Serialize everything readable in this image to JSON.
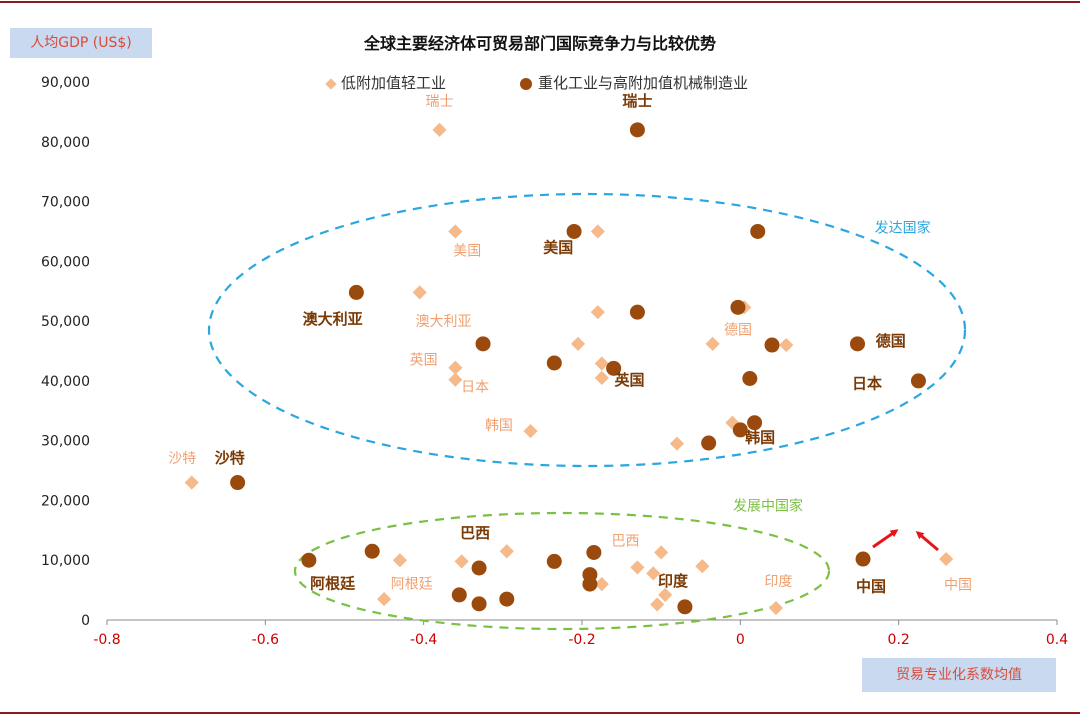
{
  "chart_data": {
    "type": "scatter",
    "title": "全球主要经济体可贸易部门国际竞争力与比较优势",
    "xlabel": "贸易专业化系数均值",
    "ylabel": "人均GDP (US$)",
    "xlim": [
      -0.8,
      0.4
    ],
    "ylim": [
      0,
      90000
    ],
    "x_ticks": [
      "-0.8",
      "-0.6",
      "-0.4",
      "-0.2",
      "0",
      "0.2",
      "0.4"
    ],
    "y_ticks": [
      "0",
      "10,000",
      "20,000",
      "30,000",
      "40,000",
      "50,000",
      "60,000",
      "70,000",
      "80,000",
      "90,000"
    ],
    "grid": false,
    "legend_position": "top-center",
    "colors": {
      "light": "#f5b98a",
      "heavy": "#9a4a0c",
      "developed": "#2aa6e0",
      "developing": "#7bc043",
      "axis_num_x": "#cc0000",
      "label_light": "#f0a070",
      "label_heavy": "#7a3a06"
    },
    "series": [
      {
        "name": "低附加值轻工业",
        "marker": "diamond",
        "points": [
          {
            "x": -0.38,
            "y": 82000
          },
          {
            "x": -0.36,
            "y": 65000
          },
          {
            "x": -0.18,
            "y": 65000
          },
          {
            "x": -0.405,
            "y": 54800
          },
          {
            "x": -0.18,
            "y": 51500
          },
          {
            "x": -0.205,
            "y": 46200
          },
          {
            "x": -0.36,
            "y": 42200
          },
          {
            "x": -0.36,
            "y": 40200
          },
          {
            "x": -0.175,
            "y": 42900
          },
          {
            "x": -0.175,
            "y": 40500
          },
          {
            "x": 0.005,
            "y": 52300
          },
          {
            "x": -0.035,
            "y": 46200
          },
          {
            "x": 0.058,
            "y": 46000
          },
          {
            "x": -0.265,
            "y": 31600
          },
          {
            "x": -0.01,
            "y": 33000
          },
          {
            "x": -0.08,
            "y": 29500
          },
          {
            "x": -0.693,
            "y": 23000
          },
          {
            "x": -0.43,
            "y": 10000
          },
          {
            "x": -0.352,
            "y": 9800
          },
          {
            "x": -0.295,
            "y": 11500
          },
          {
            "x": -0.45,
            "y": 3500
          },
          {
            "x": -0.175,
            "y": 6000
          },
          {
            "x": -0.13,
            "y": 8800
          },
          {
            "x": -0.11,
            "y": 7800
          },
          {
            "x": -0.1,
            "y": 11300
          },
          {
            "x": -0.048,
            "y": 9000
          },
          {
            "x": -0.095,
            "y": 4200
          },
          {
            "x": -0.105,
            "y": 2600
          },
          {
            "x": 0.045,
            "y": 2000
          },
          {
            "x": 0.26,
            "y": 10200
          }
        ]
      },
      {
        "name": "重化工业与高附加值机械制造业",
        "marker": "circle",
        "points": [
          {
            "x": -0.13,
            "y": 82000
          },
          {
            "x": -0.21,
            "y": 65000
          },
          {
            "x": 0.022,
            "y": 65000
          },
          {
            "x": -0.485,
            "y": 54800
          },
          {
            "x": -0.13,
            "y": 51500
          },
          {
            "x": -0.003,
            "y": 52300
          },
          {
            "x": -0.325,
            "y": 46200
          },
          {
            "x": -0.235,
            "y": 43000
          },
          {
            "x": -0.16,
            "y": 42100
          },
          {
            "x": 0.04,
            "y": 46000
          },
          {
            "x": 0.148,
            "y": 46200
          },
          {
            "x": 0.012,
            "y": 40400
          },
          {
            "x": 0.225,
            "y": 40000
          },
          {
            "x": -0.04,
            "y": 29600
          },
          {
            "x": 0,
            "y": 31800
          },
          {
            "x": 0.018,
            "y": 33000
          },
          {
            "x": -0.635,
            "y": 23000
          },
          {
            "x": -0.545,
            "y": 10000
          },
          {
            "x": -0.465,
            "y": 11500
          },
          {
            "x": -0.33,
            "y": 8700
          },
          {
            "x": -0.355,
            "y": 4200
          },
          {
            "x": -0.33,
            "y": 2700
          },
          {
            "x": -0.295,
            "y": 3500
          },
          {
            "x": -0.235,
            "y": 9800
          },
          {
            "x": -0.185,
            "y": 11300
          },
          {
            "x": -0.19,
            "y": 7600
          },
          {
            "x": -0.19,
            "y": 6000
          },
          {
            "x": -0.07,
            "y": 2200
          },
          {
            "x": 0.155,
            "y": 10200
          }
        ]
      }
    ],
    "point_labels": [
      {
        "text": "瑞士",
        "x": -0.38,
        "y": 86000,
        "style": "light"
      },
      {
        "text": "瑞士",
        "x": -0.13,
        "y": 86000,
        "style": "heavy"
      },
      {
        "text": "美国",
        "x": -0.345,
        "y": 61000,
        "style": "light"
      },
      {
        "text": "美国",
        "x": -0.23,
        "y": 61500,
        "style": "heavy"
      },
      {
        "text": "澳大利亚",
        "x": -0.515,
        "y": 49500,
        "style": "heavy"
      },
      {
        "text": "澳大利亚",
        "x": -0.375,
        "y": 49200,
        "style": "light"
      },
      {
        "text": "英国",
        "x": -0.4,
        "y": 42700,
        "style": "light"
      },
      {
        "text": "日本",
        "x": -0.335,
        "y": 38200,
        "style": "light"
      },
      {
        "text": "英国",
        "x": -0.14,
        "y": 39300,
        "style": "heavy"
      },
      {
        "text": "德国",
        "x": -0.003,
        "y": 47800,
        "style": "light"
      },
      {
        "text": "德国",
        "x": 0.19,
        "y": 45800,
        "style": "heavy"
      },
      {
        "text": "日本",
        "x": 0.16,
        "y": 38700,
        "style": "heavy"
      },
      {
        "text": "韩国",
        "x": -0.305,
        "y": 31800,
        "style": "light"
      },
      {
        "text": "韩国",
        "x": 0.025,
        "y": 29700,
        "style": "heavy"
      },
      {
        "text": "沙特",
        "x": -0.705,
        "y": 26300,
        "style": "light"
      },
      {
        "text": "沙特",
        "x": -0.645,
        "y": 26300,
        "style": "heavy"
      },
      {
        "text": "巴西",
        "x": -0.335,
        "y": 13700,
        "style": "heavy"
      },
      {
        "text": "巴西",
        "x": -0.145,
        "y": 12500,
        "style": "light"
      },
      {
        "text": "阿根廷",
        "x": -0.515,
        "y": 5300,
        "style": "heavy"
      },
      {
        "text": "阿根廷",
        "x": -0.415,
        "y": 5300,
        "style": "light"
      },
      {
        "text": "印度",
        "x": -0.085,
        "y": 5700,
        "style": "heavy"
      },
      {
        "text": "印度",
        "x": 0.048,
        "y": 5700,
        "style": "light"
      },
      {
        "text": "中国",
        "x": 0.165,
        "y": 4800,
        "style": "heavy"
      },
      {
        "text": "中国",
        "x": 0.275,
        "y": 5100,
        "style": "light"
      }
    ],
    "annotations": [
      {
        "text": "发达国家",
        "x": 0.205,
        "y": 64800,
        "style": "developed"
      },
      {
        "text": "发展中国家",
        "x": 0.035,
        "y": 18300,
        "style": "developing"
      }
    ]
  }
}
